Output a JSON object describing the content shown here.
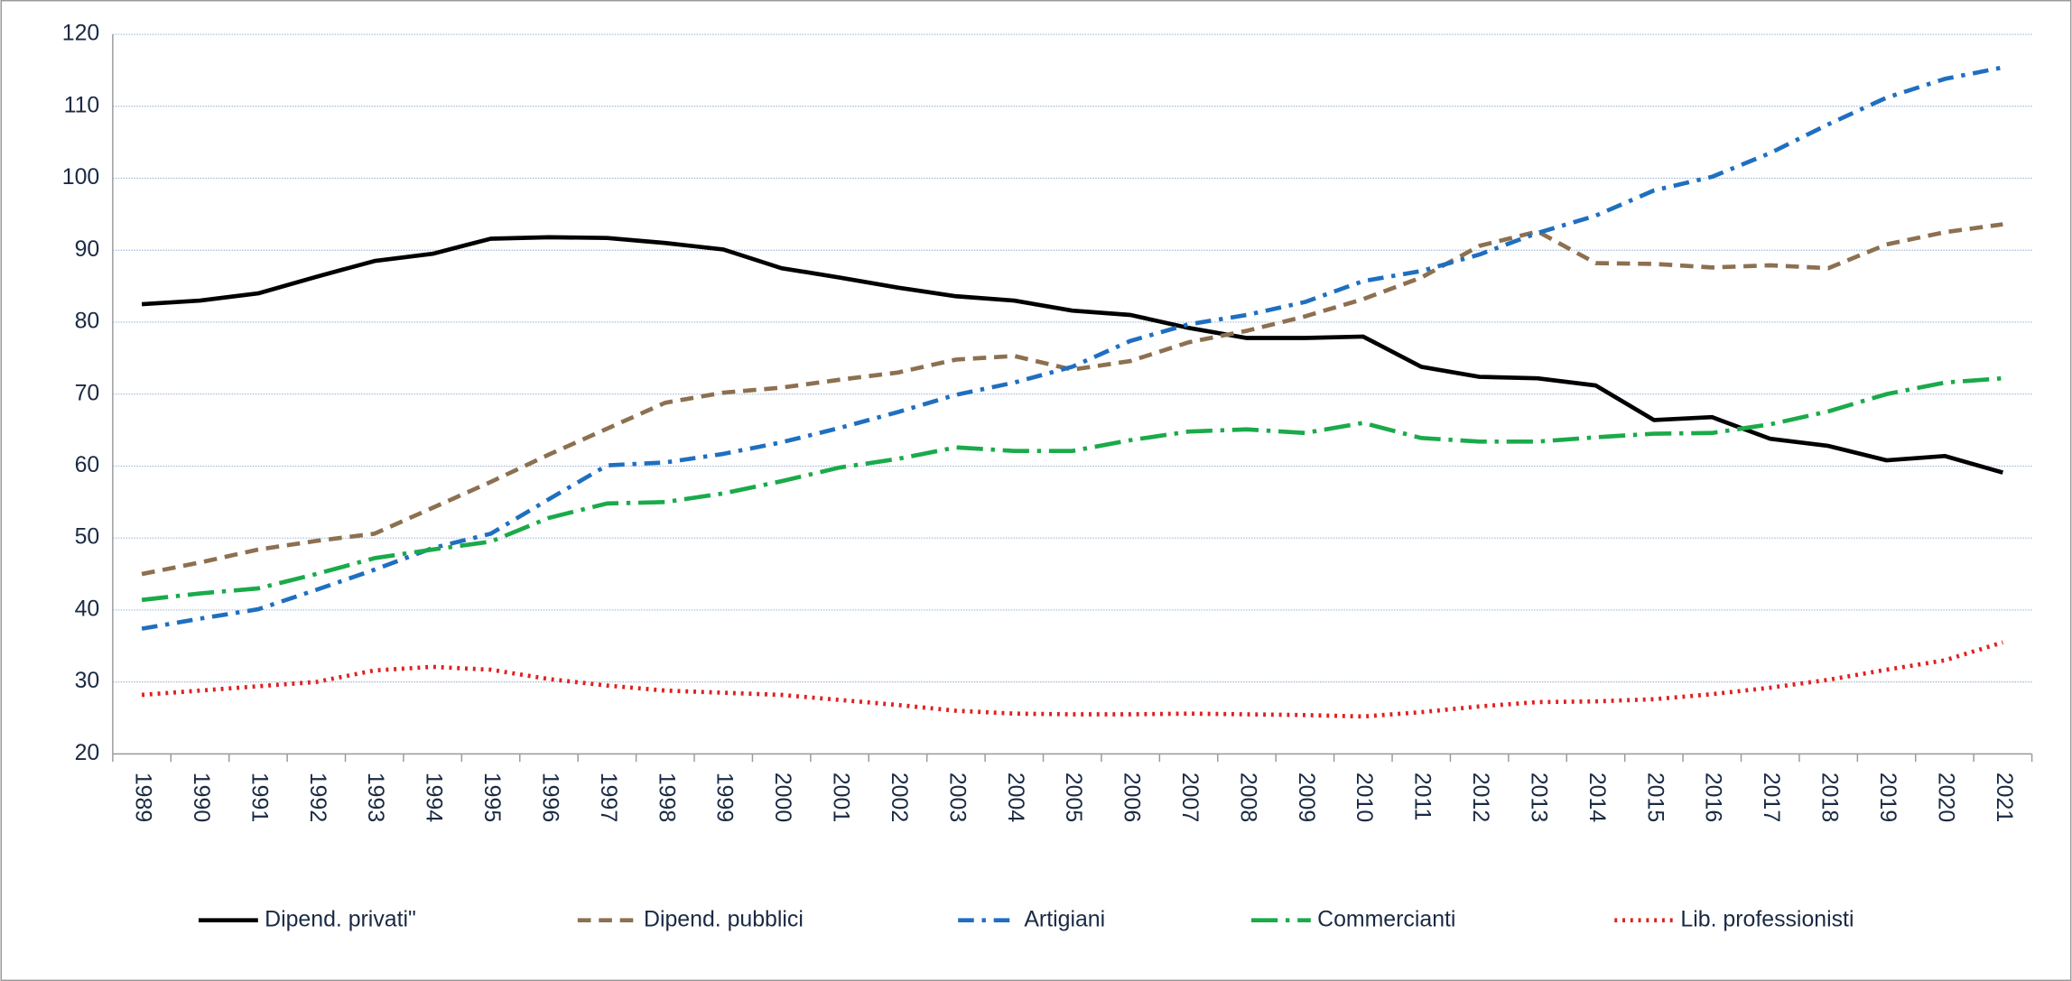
{
  "chart_data": {
    "type": "line",
    "categories": [
      "1989",
      "1990",
      "1991",
      "1992",
      "1993",
      "1994",
      "1995",
      "1996",
      "1997",
      "1998",
      "1999",
      "2000",
      "2001",
      "2002",
      "2003",
      "2004",
      "2005",
      "2006",
      "2007",
      "2008",
      "2009",
      "2010",
      "2011",
      "2012",
      "2013",
      "2014",
      "2015",
      "2016",
      "2017",
      "2018",
      "2019",
      "2020",
      "2021"
    ],
    "series": [
      {
        "name": "Dipend. privati\"",
        "color": "#000000",
        "dash": "solid",
        "values": [
          82.5,
          83,
          84,
          86.3,
          88.5,
          89.5,
          91.6,
          91.8,
          91.7,
          91,
          90.1,
          87.5,
          86.2,
          84.8,
          83.6,
          83,
          81.6,
          81,
          79.2,
          77.8,
          77.8,
          78,
          73.8,
          72.4,
          72.2,
          71.2,
          66.4,
          66.8,
          63.8,
          62.8,
          60.8,
          61.4,
          59.1
        ]
      },
      {
        "name": "Dipend. pubblici",
        "color": "#8c7050",
        "dash": "dash",
        "values": [
          45,
          46.6,
          48.4,
          49.6,
          50.6,
          54.2,
          57.8,
          61.6,
          65.2,
          68.8,
          70.2,
          70.9,
          72,
          73,
          74.8,
          75.3,
          73.4,
          74.6,
          77.2,
          78.8,
          80.8,
          83.2,
          86.2,
          90.6,
          92.6,
          88.2,
          88.1,
          87.6,
          87.9,
          87.5,
          90.8,
          92.5,
          93.6
        ]
      },
      {
        "name": "Artigiani",
        "color": "#1f6fc0",
        "dash": "dashdot",
        "values": [
          37.4,
          38.8,
          40.1,
          42.8,
          45.6,
          48.6,
          50.6,
          55.4,
          60.1,
          60.5,
          61.7,
          63.3,
          65.3,
          67.5,
          69.9,
          71.6,
          73.8,
          77.4,
          79.7,
          81,
          82.8,
          85.7,
          87.1,
          89.4,
          92.4,
          94.8,
          98.3,
          100.2,
          103.5,
          107.5,
          111.2,
          113.8,
          115.4
        ]
      },
      {
        "name": "Commercianti",
        "color": "#1aaa4a",
        "dash": "longdashdot",
        "values": [
          41.4,
          42.3,
          43,
          45,
          47.2,
          48.4,
          49.5,
          52.8,
          54.8,
          55,
          56.2,
          57.9,
          59.8,
          61,
          62.6,
          62.1,
          62.1,
          63.6,
          64.8,
          65.1,
          64.6,
          66,
          63.9,
          63.4,
          63.4,
          64,
          64.5,
          64.6,
          65.8,
          67.6,
          70,
          71.6,
          72.2
        ]
      },
      {
        "name": "Lib. professionisti",
        "color": "#e02020",
        "dash": "dot",
        "values": [
          28.2,
          28.8,
          29.4,
          30,
          31.6,
          32.1,
          31.7,
          30.4,
          29.5,
          28.8,
          28.5,
          28.2,
          27.5,
          26.8,
          26,
          25.6,
          25.5,
          25.5,
          25.6,
          25.5,
          25.4,
          25.2,
          25.8,
          26.6,
          27.2,
          27.3,
          27.6,
          28.3,
          29.2,
          30.3,
          31.7,
          33,
          35.5
        ]
      }
    ],
    "ylim": [
      20,
      120
    ],
    "yticks": [
      20,
      30,
      40,
      50,
      60,
      70,
      80,
      90,
      100,
      110,
      120
    ],
    "grid": true,
    "legend": "bottom"
  }
}
